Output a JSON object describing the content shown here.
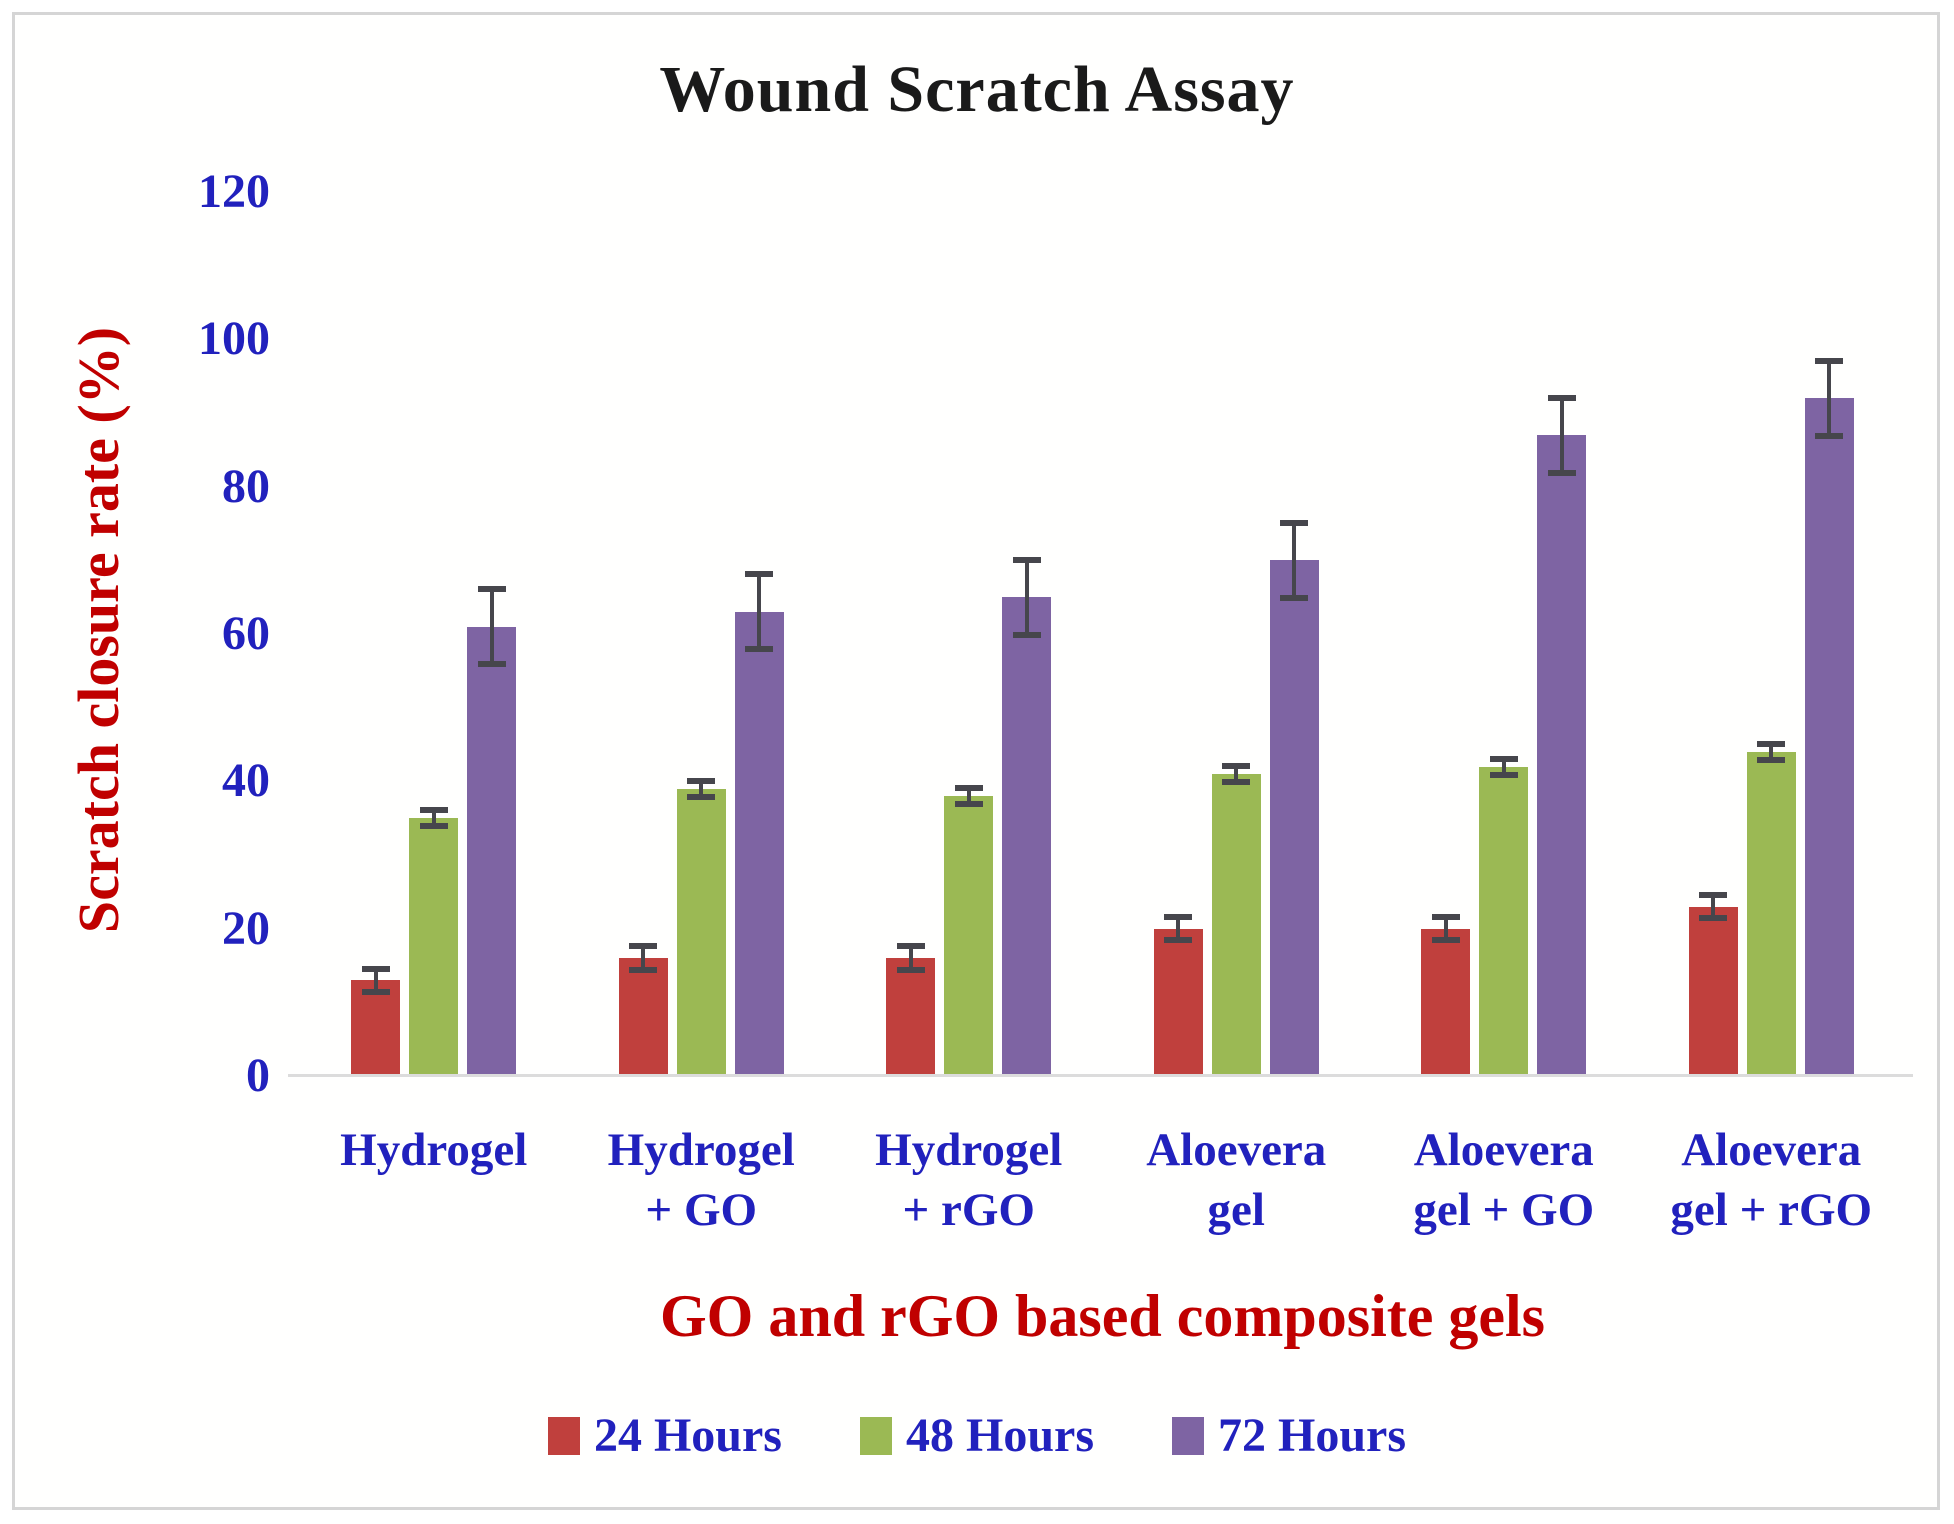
{
  "title": "Wound Scratch Assay",
  "colors": {
    "bar_24h": "#c0403d",
    "bar_48h": "#9bb954",
    "bar_72h": "#7e64a3",
    "error_bar": "#46464c",
    "axis_title_red": "#c00000",
    "tick_and_category_blue": "#2121bd",
    "title_black": "#1a1a1a",
    "axis_line_gray": "#dcdcdc"
  },
  "chart_data": {
    "type": "bar",
    "title": "Wound Scratch Assay",
    "xlabel": "GO and rGO based composite gels",
    "ylabel": "Scratch closure rate (%)",
    "ylim": [
      0,
      120
    ],
    "yticks": [
      0,
      20,
      40,
      60,
      80,
      100,
      120
    ],
    "grid": false,
    "legend_position": "bottom",
    "error_bars": true,
    "categories": [
      "Hydrogel",
      "Hydrogel + GO",
      "Hydrogel + rGO",
      "Aloevera gel",
      "Aloevera gel + GO",
      "Aloevera gel + rGO"
    ],
    "category_label_lines": [
      {
        "line1": "Hydrogel",
        "line2": ""
      },
      {
        "line1": "Hydrogel",
        "line2": "+ GO"
      },
      {
        "line1": "Hydrogel",
        "line2": "+ rGO"
      },
      {
        "line1": "Aloevera",
        "line2": "gel"
      },
      {
        "line1": "Aloevera",
        "line2": "gel + GO"
      },
      {
        "line1": "Aloevera",
        "line2": "gel + rGO"
      }
    ],
    "series": [
      {
        "name": "24 Hours",
        "color": "#c0403d",
        "values": [
          13,
          16,
          16,
          20,
          20,
          23
        ],
        "errors": [
          2,
          2,
          2,
          2,
          2,
          2
        ]
      },
      {
        "name": "48 Hours",
        "color": "#9bb954",
        "values": [
          35,
          39,
          38,
          41,
          42,
          44
        ],
        "errors": [
          1.5,
          1.5,
          1.5,
          1.5,
          1.5,
          1.5
        ]
      },
      {
        "name": "72 Hours",
        "color": "#7e64a3",
        "values": [
          61,
          63,
          65,
          70,
          87,
          92
        ],
        "errors": [
          5.5,
          5.5,
          5.5,
          5.5,
          5.5,
          5.5
        ]
      }
    ]
  }
}
